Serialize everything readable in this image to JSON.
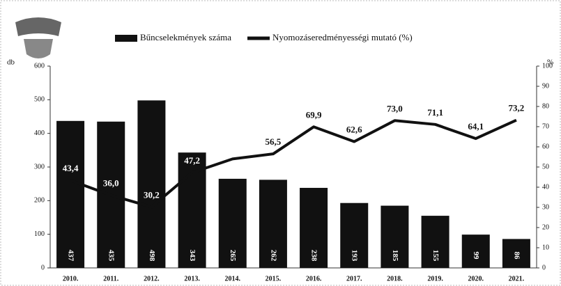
{
  "chart_data": {
    "type": "bar-line",
    "categories": [
      "2010.",
      "2011.",
      "2012.",
      "2013.",
      "2014.",
      "2015.",
      "2016.",
      "2017.",
      "2018.",
      "2019.",
      "2020.",
      "2021."
    ],
    "series": [
      {
        "name": "Bűncselekmények száma",
        "color": "#111111",
        "type": "bar",
        "values": [
          437,
          435,
          498,
          343,
          265,
          262,
          238,
          193,
          185,
          155,
          99,
          86
        ]
      },
      {
        "name": "Nyomozáseredményességi mutató (%)",
        "color": "#111111",
        "type": "line",
        "axis": "y2",
        "values": [
          43.4,
          36.0,
          30.2,
          47.2,
          54,
          56.5,
          69.9,
          62.6,
          73.0,
          71.1,
          64.1,
          73.2
        ],
        "value_labels": [
          "43,4",
          "36,0",
          "30,2",
          "47,2",
          null,
          "56,5",
          "69,9",
          "62,6",
          "73,0",
          "71,1",
          "64,1",
          "73,2"
        ]
      }
    ],
    "ylabel": "db",
    "y2label": "%",
    "ylim": [
      0,
      600
    ],
    "yticks": [
      0,
      100,
      200,
      300,
      400,
      500,
      600
    ],
    "y2lim": [
      0,
      100
    ],
    "y2ticks": [
      0,
      10,
      20,
      30,
      40,
      50,
      60,
      70,
      80,
      90,
      100
    ],
    "legend": "top"
  }
}
